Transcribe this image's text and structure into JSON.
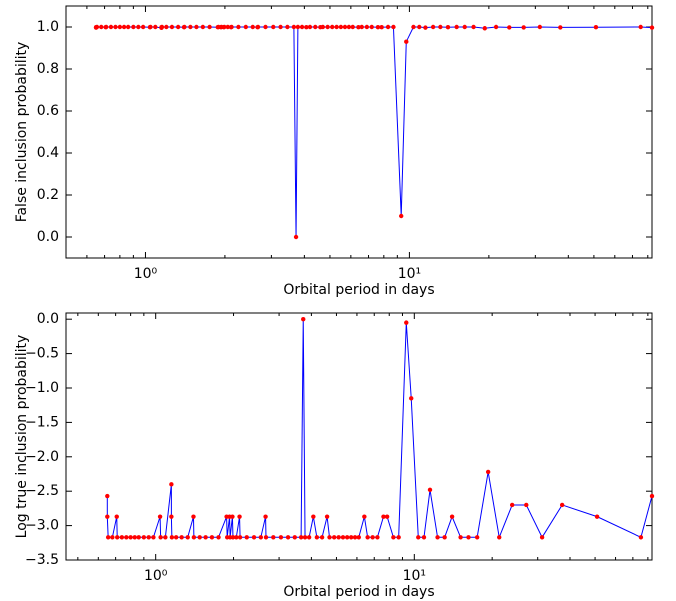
{
  "chart_data": [
    {
      "type": "line",
      "xlabel": "Orbital period in days",
      "ylabel": "False inclusion probability",
      "xscale": "log",
      "xlim": [
        0.5,
        83
      ],
      "ylim": [
        -0.1,
        1.1
      ],
      "xticks": [
        {
          "value": 1,
          "label": "10⁰"
        },
        {
          "value": 10,
          "label": "10¹"
        }
      ],
      "xminorticks": [
        0.5,
        0.6,
        0.7,
        0.8,
        0.9,
        2,
        3,
        4,
        5,
        6,
        7,
        8,
        9,
        20,
        30,
        40,
        50,
        60,
        70,
        80
      ],
      "yticks": [
        {
          "value": 0,
          "label": "0.0"
        },
        0.2,
        0.4,
        0.6,
        0.8,
        {
          "value": 1,
          "label": "1.0"
        }
      ],
      "x": [
        0.65,
        0.65,
        0.655,
        0.68,
        0.707,
        0.71,
        0.74,
        0.77,
        0.8,
        0.83,
        0.86,
        0.9,
        0.94,
        0.98,
        1.04,
        1.045,
        1.09,
        1.15,
        1.15,
        1.155,
        1.2,
        1.26,
        1.33,
        1.4,
        1.405,
        1.48,
        1.56,
        1.65,
        1.75,
        1.88,
        1.89,
        1.93,
        1.94,
        1.98,
        1.99,
        2.05,
        2.11,
        2.12,
        2.25,
        2.4,
        2.55,
        2.66,
        2.67,
        2.85,
        3.05,
        3.25,
        3.45,
        3.65,
        3.72,
        3.78,
        3.92,
        4.07,
        4.2,
        4.4,
        4.6,
        4.7,
        4.9,
        5.1,
        5.3,
        5.5,
        5.7,
        5.9,
        6.1,
        6.41,
        6.6,
        6.9,
        7.2,
        7.6,
        7.85,
        8.3,
        8.7,
        9.31,
        9.73,
        10.36,
        10.9,
        11.5,
        12.3,
        13.1,
        14.0,
        15.1,
        16.2,
        17.5,
        19.3,
        21.3,
        23.9,
        27.1,
        31.2,
        37.3,
        50.9,
        75.2,
        83
      ],
      "series": [
        {
          "line_color": "#0000ff",
          "color": "#ff0000",
          "values": [
            0.997,
            0.999,
            1.0,
            1.0,
            0.999,
            1.0,
            1.0,
            1.0,
            1.0,
            1.0,
            1.0,
            1.0,
            1.0,
            1.0,
            0.999,
            1.0,
            1.0,
            0.996,
            0.999,
            1.0,
            1.0,
            1.0,
            1.0,
            0.999,
            1.0,
            1.0,
            1.0,
            1.0,
            1.0,
            0.999,
            1.0,
            0.999,
            1.0,
            0.999,
            1.0,
            1.0,
            0.999,
            1.0,
            1.0,
            1.0,
            1.0,
            0.999,
            1.0,
            1.0,
            1.0,
            1.0,
            1.0,
            1.0,
            0.0,
            1.0,
            1.0,
            0.999,
            1.0,
            1.0,
            0.999,
            1.0,
            1.0,
            1.0,
            1.0,
            1.0,
            1.0,
            1.0,
            1.0,
            0.999,
            1.0,
            1.0,
            1.0,
            0.999,
            0.999,
            1.0,
            1.0,
            0.1,
            0.93,
            1.0,
            1.0,
            0.997,
            1.0,
            1.0,
            0.999,
            1.0,
            1.0,
            1.0,
            0.994,
            1.0,
            0.998,
            0.998,
            1.0,
            0.998,
            0.999,
            1.0,
            0.997
          ]
        }
      ]
    },
    {
      "type": "line",
      "xlabel": "Orbital period in days",
      "ylabel": "Log true inclusion probability",
      "xscale": "log",
      "xlim": [
        0.45,
        83
      ],
      "ylim": [
        -3.5,
        0.09
      ],
      "xticks": [
        {
          "value": 1,
          "label": "10⁰"
        },
        {
          "value": 10,
          "label": "10¹"
        }
      ],
      "xminorticks": [
        0.5,
        0.6,
        0.7,
        0.8,
        0.9,
        2,
        3,
        4,
        5,
        6,
        7,
        8,
        9,
        20,
        30,
        40,
        50,
        60,
        70,
        80
      ],
      "yticks": [
        {
          "value": -3.5,
          "label": "−3.5"
        },
        {
          "value": -3,
          "label": "−3.0"
        },
        {
          "value": -2.5,
          "label": "−2.5"
        },
        {
          "value": -2,
          "label": "−2.0"
        },
        {
          "value": -1.5,
          "label": "−1.5"
        },
        {
          "value": -1,
          "label": "−1.0"
        },
        {
          "value": -0.5,
          "label": "−0.5"
        },
        {
          "value": 0,
          "label": "0.0"
        }
      ],
      "x": [
        0.65,
        0.65,
        0.655,
        0.68,
        0.707,
        0.71,
        0.74,
        0.77,
        0.8,
        0.83,
        0.86,
        0.9,
        0.94,
        0.98,
        1.04,
        1.045,
        1.09,
        1.15,
        1.15,
        1.155,
        1.2,
        1.26,
        1.33,
        1.4,
        1.405,
        1.48,
        1.56,
        1.65,
        1.75,
        1.88,
        1.89,
        1.93,
        1.94,
        1.98,
        1.99,
        2.05,
        2.11,
        2.12,
        2.25,
        2.4,
        2.55,
        2.66,
        2.67,
        2.85,
        3.05,
        3.25,
        3.45,
        3.65,
        3.72,
        3.78,
        3.92,
        4.07,
        4.2,
        4.4,
        4.6,
        4.7,
        4.9,
        5.1,
        5.3,
        5.5,
        5.7,
        5.9,
        6.1,
        6.41,
        6.6,
        6.9,
        7.2,
        7.6,
        7.85,
        8.3,
        8.7,
        9.31,
        9.73,
        10.36,
        10.9,
        11.5,
        12.3,
        13.1,
        14.0,
        15.1,
        16.2,
        17.5,
        19.3,
        21.3,
        23.9,
        27.1,
        31.2,
        37.3,
        50.9,
        75.2,
        83
      ],
      "series": [
        {
          "line_color": "#0000ff",
          "color": "#ff0000",
          "values": [
            -2.57,
            -2.87,
            -3.17,
            -3.17,
            -2.87,
            -3.17,
            -3.17,
            -3.17,
            -3.17,
            -3.17,
            -3.17,
            -3.17,
            -3.17,
            -3.17,
            -2.87,
            -3.17,
            -3.17,
            -2.4,
            -2.87,
            -3.17,
            -3.17,
            -3.17,
            -3.17,
            -2.87,
            -3.17,
            -3.17,
            -3.17,
            -3.17,
            -3.17,
            -2.87,
            -3.17,
            -2.87,
            -3.17,
            -2.87,
            -3.17,
            -3.17,
            -2.87,
            -3.17,
            -3.17,
            -3.17,
            -3.17,
            -2.87,
            -3.17,
            -3.17,
            -3.17,
            -3.17,
            -3.17,
            -3.17,
            0.0,
            -3.17,
            -3.17,
            -2.87,
            -3.17,
            -3.17,
            -2.87,
            -3.17,
            -3.17,
            -3.17,
            -3.17,
            -3.17,
            -3.17,
            -3.17,
            -3.17,
            -2.87,
            -3.17,
            -3.17,
            -3.17,
            -2.87,
            -2.87,
            -3.17,
            -3.17,
            -0.05,
            -1.15,
            -3.17,
            -3.17,
            -2.48,
            -3.17,
            -3.17,
            -2.87,
            -3.17,
            -3.17,
            -3.17,
            -2.22,
            -3.17,
            -2.7,
            -2.7,
            -3.17,
            -2.7,
            -2.87,
            -3.17,
            -2.57
          ]
        }
      ]
    }
  ]
}
